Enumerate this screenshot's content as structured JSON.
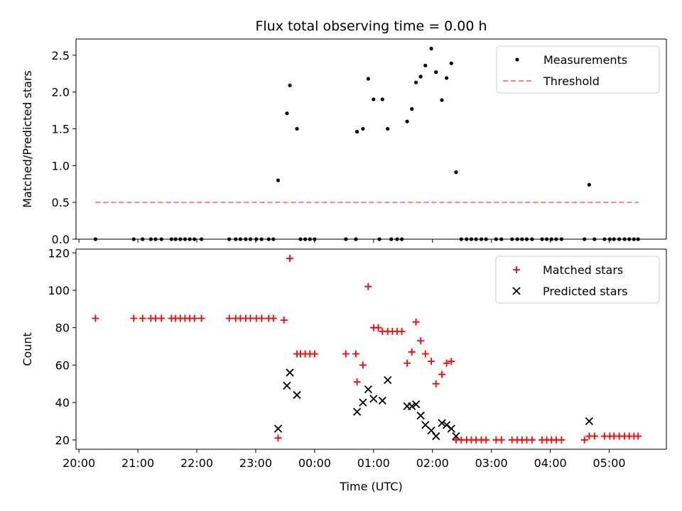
{
  "chart_data": [
    {
      "type": "scatter",
      "title": "Flux total observing time = 0.00 h",
      "ylabel": "Matched/Predicted stars",
      "xlabel": "",
      "xlim": [
        -0.05,
        9.97
      ],
      "ylim": [
        0,
        2.72
      ],
      "xticks": [
        0,
        1,
        2,
        3,
        4,
        5,
        6,
        7,
        8,
        9
      ],
      "xtick_labels": [],
      "yticks": [
        0.0,
        0.5,
        1.0,
        1.5,
        2.0,
        2.5
      ],
      "ytick_labels": [
        "0.0",
        "0.5",
        "1.0",
        "1.5",
        "2.0",
        "2.5"
      ],
      "legend": {
        "position": "top-right",
        "entries": [
          "Measurements",
          "Threshold"
        ]
      },
      "series": [
        {
          "name": "Measurements",
          "kind": "scatter",
          "color": "#000000",
          "points": [
            [
              0.28,
              0
            ],
            [
              0.93,
              0
            ],
            [
              1.08,
              0
            ],
            [
              1.22,
              0
            ],
            [
              1.3,
              0
            ],
            [
              1.4,
              0
            ],
            [
              1.57,
              0
            ],
            [
              1.64,
              0
            ],
            [
              1.72,
              0
            ],
            [
              1.8,
              0
            ],
            [
              1.88,
              0
            ],
            [
              1.96,
              0
            ],
            [
              2.08,
              0
            ],
            [
              2.55,
              0
            ],
            [
              2.66,
              0
            ],
            [
              2.74,
              0
            ],
            [
              2.83,
              0
            ],
            [
              2.91,
              0
            ],
            [
              3.01,
              0
            ],
            [
              3.1,
              0
            ],
            [
              3.22,
              0
            ],
            [
              3.3,
              0
            ],
            [
              3.38,
              0.8
            ],
            [
              3.53,
              1.71
            ],
            [
              3.58,
              2.09
            ],
            [
              3.7,
              1.5
            ],
            [
              3.76,
              0
            ],
            [
              3.84,
              0
            ],
            [
              3.92,
              0
            ],
            [
              4.0,
              0
            ],
            [
              4.53,
              0
            ],
            [
              4.7,
              0
            ],
            [
              4.72,
              1.46
            ],
            [
              4.82,
              1.5
            ],
            [
              4.91,
              2.18
            ],
            [
              5.0,
              1.9
            ],
            [
              5.1,
              0
            ],
            [
              5.15,
              1.9
            ],
            [
              5.24,
              1.5
            ],
            [
              5.3,
              0
            ],
            [
              5.4,
              0
            ],
            [
              5.48,
              0
            ],
            [
              5.57,
              1.6
            ],
            [
              5.65,
              1.77
            ],
            [
              5.72,
              2.13
            ],
            [
              5.8,
              2.21
            ],
            [
              5.88,
              2.36
            ],
            [
              5.98,
              2.59
            ],
            [
              6.06,
              2.27
            ],
            [
              6.16,
              1.89
            ],
            [
              6.24,
              2.19
            ],
            [
              6.32,
              2.39
            ],
            [
              6.4,
              0.91
            ],
            [
              6.49,
              0
            ],
            [
              6.58,
              0
            ],
            [
              6.66,
              0
            ],
            [
              6.74,
              0
            ],
            [
              6.83,
              0
            ],
            [
              6.91,
              0
            ],
            [
              7.08,
              0
            ],
            [
              7.17,
              0
            ],
            [
              7.35,
              0
            ],
            [
              7.44,
              0
            ],
            [
              7.52,
              0
            ],
            [
              7.6,
              0
            ],
            [
              7.69,
              0
            ],
            [
              7.86,
              0
            ],
            [
              7.94,
              0
            ],
            [
              8.02,
              0
            ],
            [
              8.1,
              0
            ],
            [
              8.19,
              0
            ],
            [
              8.58,
              0
            ],
            [
              8.66,
              0.74
            ],
            [
              8.75,
              0
            ],
            [
              8.92,
              0
            ],
            [
              9.01,
              0
            ],
            [
              9.08,
              0
            ],
            [
              9.17,
              0
            ],
            [
              9.26,
              0
            ],
            [
              9.34,
              0
            ],
            [
              9.42,
              0
            ],
            [
              9.49,
              0
            ]
          ]
        },
        {
          "name": "Threshold",
          "kind": "line",
          "style": "dashed",
          "color": "#ff8080",
          "x": [
            0.28,
            9.5
          ],
          "y": [
            0.5,
            0.5
          ]
        }
      ]
    },
    {
      "type": "scatter",
      "title": "",
      "ylabel": "Count",
      "xlabel": "Time (UTC)",
      "xlim": [
        -0.05,
        9.97
      ],
      "ylim": [
        15,
        122
      ],
      "xticks": [
        0,
        1,
        2,
        3,
        4,
        5,
        6,
        7,
        8,
        9
      ],
      "xtick_labels": [
        "20:00",
        "21:00",
        "22:00",
        "23:00",
        "00:00",
        "01:00",
        "02:00",
        "03:00",
        "04:00",
        "05:00"
      ],
      "yticks": [
        20,
        40,
        60,
        80,
        100,
        120
      ],
      "ytick_labels": [
        "20",
        "40",
        "60",
        "80",
        "100",
        "120"
      ],
      "legend": {
        "position": "top-right",
        "entries": [
          "Matched stars",
          "Predicted stars"
        ]
      },
      "series": [
        {
          "name": "Matched stars",
          "kind": "plus",
          "color": "#ff0000",
          "points": [
            [
              0.28,
              85
            ],
            [
              0.93,
              85
            ],
            [
              1.08,
              85
            ],
            [
              1.22,
              85
            ],
            [
              1.3,
              85
            ],
            [
              1.4,
              85
            ],
            [
              1.57,
              85
            ],
            [
              1.64,
              85
            ],
            [
              1.72,
              85
            ],
            [
              1.8,
              85
            ],
            [
              1.88,
              85
            ],
            [
              1.96,
              85
            ],
            [
              2.08,
              85
            ],
            [
              2.55,
              85
            ],
            [
              2.66,
              85
            ],
            [
              2.74,
              85
            ],
            [
              2.83,
              85
            ],
            [
              2.91,
              85
            ],
            [
              3.01,
              85
            ],
            [
              3.1,
              85
            ],
            [
              3.22,
              85
            ],
            [
              3.3,
              85
            ],
            [
              3.38,
              21
            ],
            [
              3.48,
              84
            ],
            [
              3.58,
              117
            ],
            [
              3.7,
              66
            ],
            [
              3.76,
              66
            ],
            [
              3.84,
              66
            ],
            [
              3.92,
              66
            ],
            [
              4.0,
              66
            ],
            [
              4.53,
              66
            ],
            [
              4.7,
              66
            ],
            [
              4.72,
              51
            ],
            [
              4.82,
              60
            ],
            [
              4.91,
              102
            ],
            [
              5.0,
              80
            ],
            [
              5.08,
              80
            ],
            [
              5.15,
              78
            ],
            [
              5.24,
              78
            ],
            [
              5.32,
              78
            ],
            [
              5.4,
              78
            ],
            [
              5.48,
              78
            ],
            [
              5.57,
              61
            ],
            [
              5.65,
              67
            ],
            [
              5.72,
              83
            ],
            [
              5.8,
              73
            ],
            [
              5.88,
              66
            ],
            [
              5.98,
              62
            ],
            [
              6.06,
              50
            ],
            [
              6.16,
              55
            ],
            [
              6.24,
              61
            ],
            [
              6.32,
              62
            ],
            [
              6.4,
              20
            ],
            [
              6.49,
              20
            ],
            [
              6.58,
              20
            ],
            [
              6.66,
              20
            ],
            [
              6.74,
              20
            ],
            [
              6.83,
              20
            ],
            [
              6.91,
              20
            ],
            [
              7.08,
              20
            ],
            [
              7.17,
              20
            ],
            [
              7.35,
              20
            ],
            [
              7.44,
              20
            ],
            [
              7.52,
              20
            ],
            [
              7.6,
              20
            ],
            [
              7.69,
              20
            ],
            [
              7.86,
              20
            ],
            [
              7.94,
              20
            ],
            [
              8.02,
              20
            ],
            [
              8.1,
              20
            ],
            [
              8.19,
              20
            ],
            [
              8.58,
              20
            ],
            [
              8.66,
              22
            ],
            [
              8.75,
              22
            ],
            [
              8.92,
              22
            ],
            [
              9.01,
              22
            ],
            [
              9.08,
              22
            ],
            [
              9.17,
              22
            ],
            [
              9.26,
              22
            ],
            [
              9.34,
              22
            ],
            [
              9.42,
              22
            ],
            [
              9.49,
              22
            ]
          ]
        },
        {
          "name": "Predicted stars",
          "kind": "x",
          "color": "#000000",
          "points": [
            [
              3.38,
              26
            ],
            [
              3.53,
              49
            ],
            [
              3.58,
              56
            ],
            [
              3.7,
              44
            ],
            [
              4.72,
              35
            ],
            [
              4.82,
              40
            ],
            [
              4.91,
              47
            ],
            [
              5.0,
              42
            ],
            [
              5.15,
              41
            ],
            [
              5.24,
              52
            ],
            [
              5.57,
              38
            ],
            [
              5.65,
              38
            ],
            [
              5.72,
              39
            ],
            [
              5.8,
              33
            ],
            [
              5.88,
              28
            ],
            [
              5.98,
              25
            ],
            [
              6.06,
              22
            ],
            [
              6.16,
              29
            ],
            [
              6.24,
              28
            ],
            [
              6.32,
              26
            ],
            [
              6.4,
              22
            ],
            [
              8.66,
              30
            ]
          ]
        }
      ]
    }
  ]
}
